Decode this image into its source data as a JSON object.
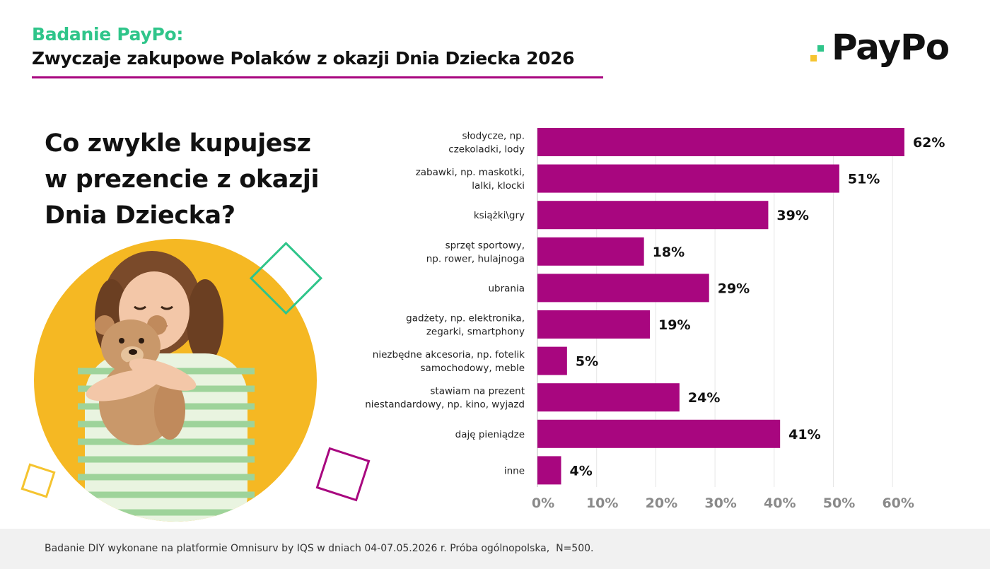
{
  "header": {
    "kicker": "Badanie PayPo:",
    "title": "Zwyczaje zakupowe Polaków z okazji Dnia Dziecka 2026"
  },
  "brand": {
    "logo_text": "PayPo",
    "colors": {
      "green": "#2fc58a",
      "yellow": "#f5c430",
      "magenta": "#a8067f",
      "black": "#111111"
    }
  },
  "question": {
    "lines": [
      "Co zwykle kupujesz",
      "w prezencie z okazji",
      "Dnia Dziecka?"
    ]
  },
  "illustration": {
    "subject": "smiling girl hugging a teddy bear on a yellow circle",
    "decorations": [
      "green-outline-square",
      "yellow-outline-square",
      "magenta-outline-square"
    ]
  },
  "chart_data": {
    "type": "bar",
    "orientation": "horizontal",
    "categories": [
      [
        "słodycze, np.",
        "czekoladki, lody"
      ],
      [
        "zabawki, np. maskotki,",
        "lalki, klocki"
      ],
      [
        "książki\\gry"
      ],
      [
        "sprzęt sportowy,",
        "np. rower, hulajnoga"
      ],
      [
        "ubrania"
      ],
      [
        "gadżety, np. elektronika,",
        "zegarki, smartphony"
      ],
      [
        "niezbędne akcesoria, np. fotelik",
        "samochodowy, meble"
      ],
      [
        "stawiam na prezent",
        "niestandardowy, np. kino, wyjazd"
      ],
      [
        "daję pieniądze"
      ],
      [
        "inne"
      ]
    ],
    "values": [
      62,
      51,
      39,
      18,
      29,
      19,
      5,
      24,
      41,
      4
    ],
    "value_labels": [
      "62%",
      "51%",
      "39%",
      "18%",
      "29%",
      "19%",
      "5%",
      "24%",
      "41%",
      "4%"
    ],
    "xticks": [
      "0%",
      "10%",
      "20%",
      "30%",
      "40%",
      "50%",
      "60%"
    ],
    "xlim": [
      0,
      60
    ],
    "grid": true,
    "bar_color": "#a8067f",
    "title": "",
    "xlabel": "",
    "ylabel": ""
  },
  "footer": {
    "note": "Badanie DIY wykonane na platformie Omnisurv by IQS w dniach 04-07.05.2026 r. Próba ogólnopolska,  N=500."
  }
}
